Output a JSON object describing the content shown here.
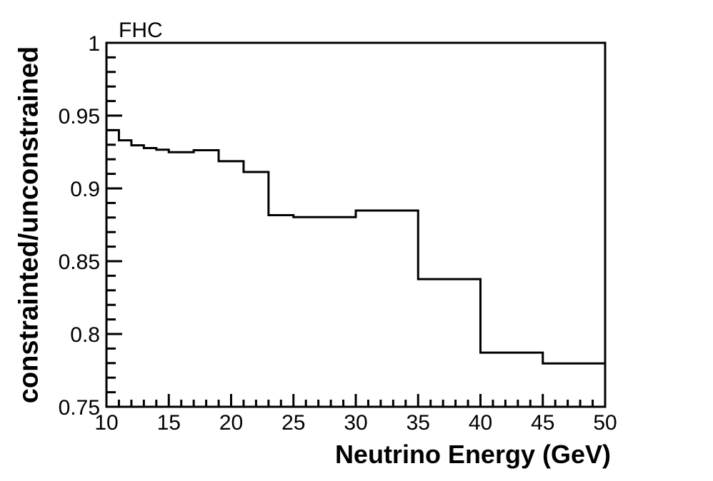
{
  "chart": {
    "title": "FHC",
    "x_axis": {
      "title": "Neutrino Energy (GeV)"
    },
    "y_axis": {
      "title": "constrainted/unconstrained"
    }
  },
  "chart_data": {
    "type": "line",
    "style": "step-histogram",
    "title": "FHC",
    "xlabel": "Neutrino Energy (GeV)",
    "ylabel": "constrainted/unconstrained",
    "xlim": [
      10,
      50
    ],
    "ylim": [
      0.75,
      1.0
    ],
    "grid": false,
    "legend": "none",
    "line_color": "#000000",
    "frame_color": "#000000",
    "background_color": "#ffffff",
    "bin_edges": [
      10,
      11,
      12,
      13,
      14,
      15,
      17,
      19,
      21,
      23,
      25,
      30,
      35,
      40,
      45,
      50
    ],
    "values": [
      0.94,
      0.933,
      0.9296,
      0.9277,
      0.9266,
      0.9249,
      0.9262,
      0.9187,
      0.9113,
      0.8816,
      0.8803,
      0.8848,
      0.8377,
      0.7872,
      0.7798
    ],
    "xticks": [
      {
        "v": 10,
        "label": "10"
      },
      {
        "v": 15,
        "label": "15"
      },
      {
        "v": 20,
        "label": "20"
      },
      {
        "v": 25,
        "label": "25"
      },
      {
        "v": 30,
        "label": "30"
      },
      {
        "v": 35,
        "label": "35"
      },
      {
        "v": 40,
        "label": "40"
      },
      {
        "v": 45,
        "label": "45"
      },
      {
        "v": 50,
        "label": "50"
      }
    ],
    "x_minor_step": 1,
    "yticks": [
      {
        "v": 1.0,
        "label": "1"
      },
      {
        "v": 0.95,
        "label": "0.95"
      },
      {
        "v": 0.9,
        "label": "0.9"
      },
      {
        "v": 0.85,
        "label": "0.85"
      },
      {
        "v": 0.8,
        "label": "0.8"
      },
      {
        "v": 0.75,
        "label": "0.75"
      }
    ],
    "y_minor_step": 0.01
  }
}
